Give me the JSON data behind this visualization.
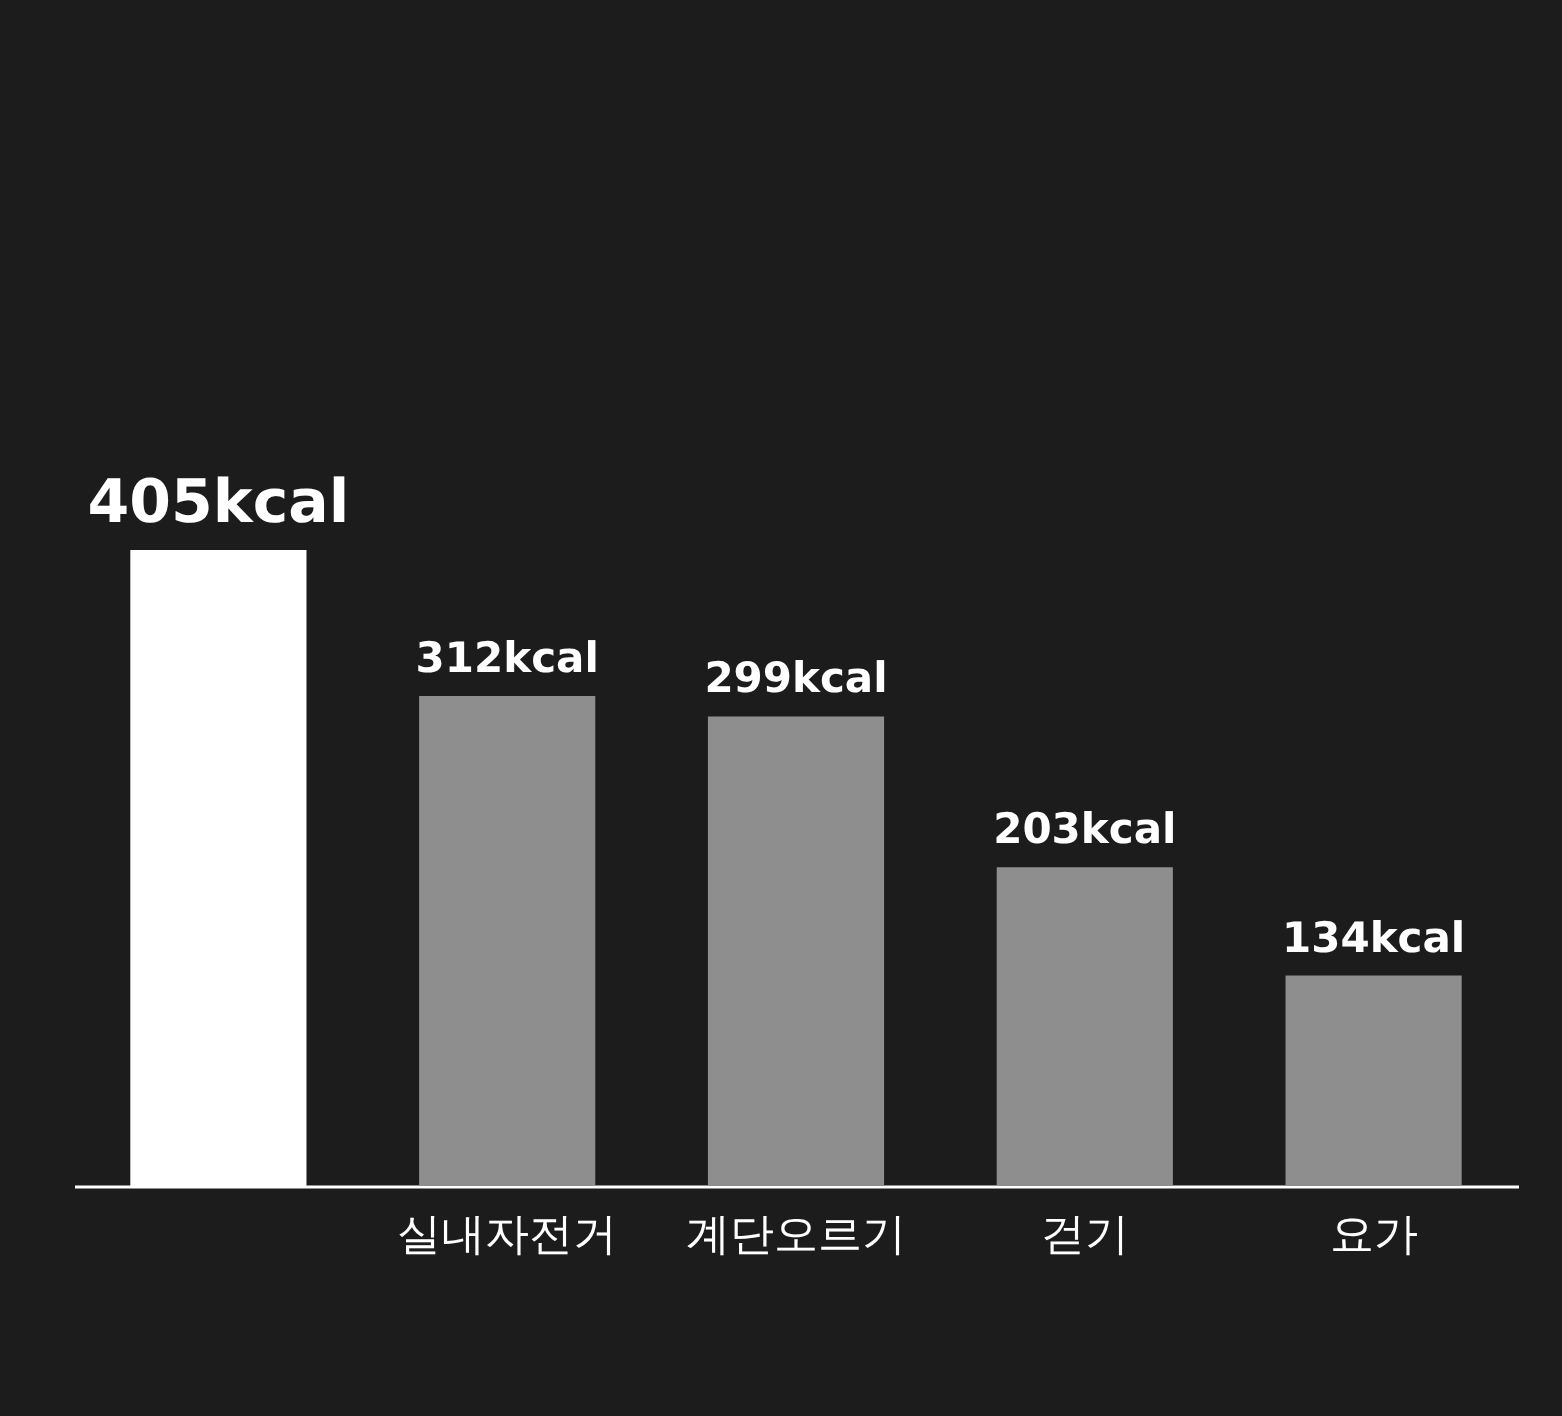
{
  "chart_data": {
    "type": "bar",
    "categories": [
      null,
      "실내자전거",
      "계단오르기",
      "걷기",
      "요가"
    ],
    "values": [
      405,
      312,
      299,
      203,
      134
    ],
    "colors": [
      "#ffffff",
      "#8e8e8e",
      "#8e8e8e",
      "#8e8e8e",
      "#8e8e8e"
    ],
    "value_labels": [
      "405kcal",
      "312kcal",
      "299kcal",
      "203kcal",
      "134kcal"
    ]
  }
}
